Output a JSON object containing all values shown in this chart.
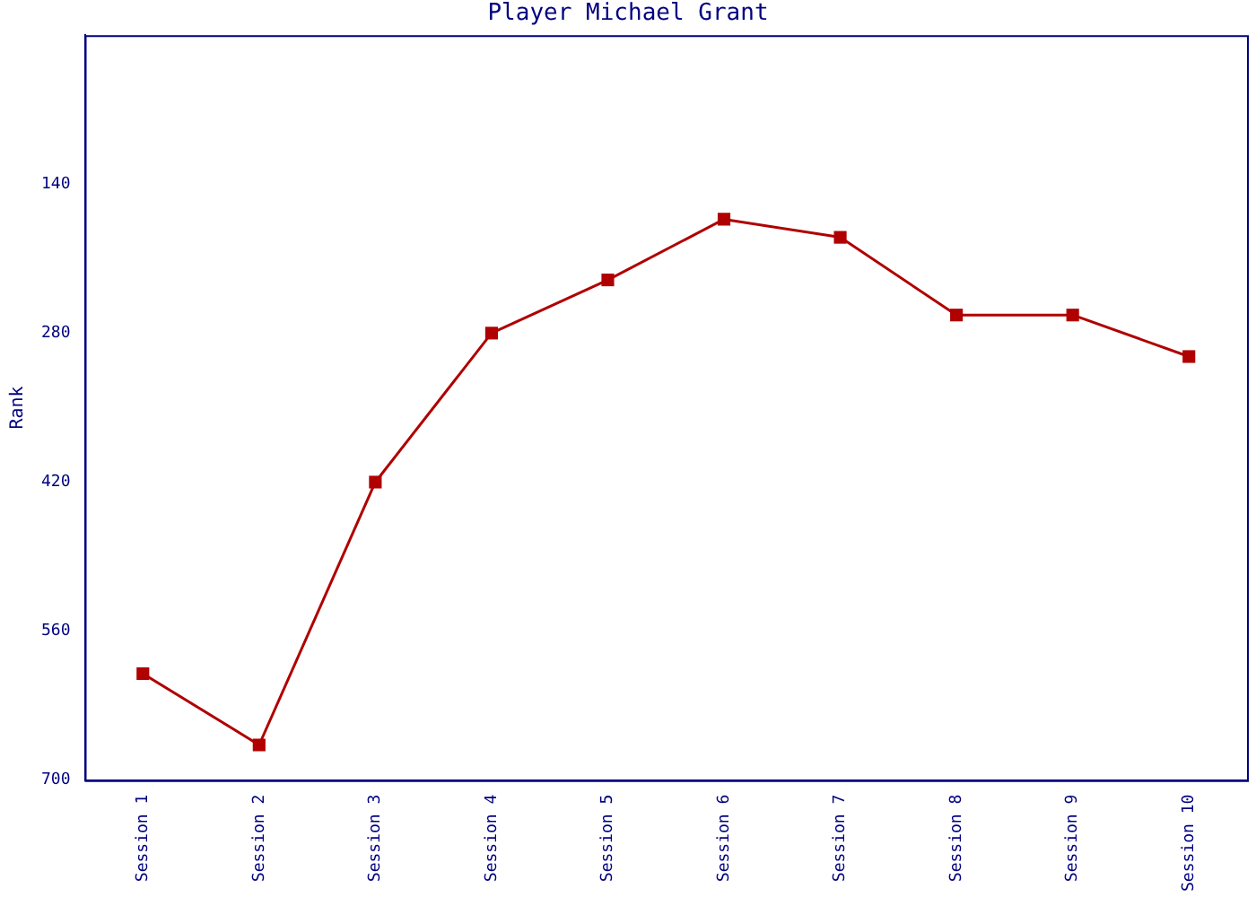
{
  "chart_data": {
    "type": "line",
    "title": "Player Michael Grant",
    "ylabel": "Rank",
    "categories": [
      "Session 1",
      "Session 2",
      "Session 3",
      "Session 4",
      "Session 5",
      "Session 6",
      "Session 7",
      "Session 8",
      "Session 9",
      "Session 10"
    ],
    "series": [
      {
        "color": "#b00000",
        "values": [
          600,
          667,
          420,
          280,
          230,
          173,
          190,
          263,
          263,
          302
        ]
      }
    ],
    "ylim": [
      700,
      0
    ],
    "yticks": [
      140,
      280,
      420,
      560,
      700
    ],
    "grid": false,
    "legend": false,
    "marker": "square",
    "line_style": "solid"
  }
}
